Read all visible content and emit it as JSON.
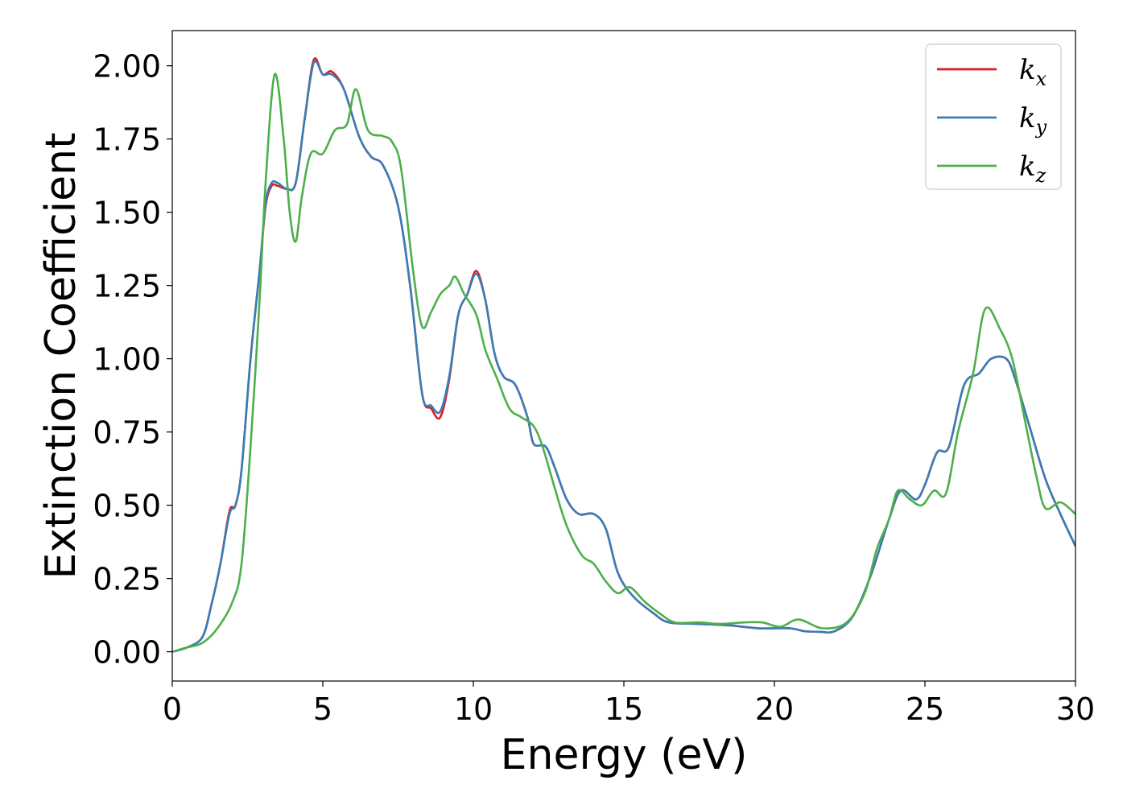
{
  "chart_data": {
    "type": "line",
    "title": "",
    "xlabel": "Energy (eV)",
    "ylabel": "Extinction Coefficient",
    "xlim": [
      0,
      30
    ],
    "ylim": [
      -0.1,
      2.12
    ],
    "xticks": [
      0,
      5,
      10,
      15,
      20,
      25,
      30
    ],
    "xtick_labels": [
      "0",
      "5",
      "10",
      "15",
      "20",
      "25",
      "30"
    ],
    "yticks": [
      0.0,
      0.25,
      0.5,
      0.75,
      1.0,
      1.25,
      1.5,
      1.75,
      2.0
    ],
    "ytick_labels": [
      "0.00",
      "0.25",
      "0.50",
      "0.75",
      "1.00",
      "1.25",
      "1.50",
      "1.75",
      "2.00"
    ],
    "grid": false,
    "legend_position": "top-right",
    "series": [
      {
        "name": "k_x",
        "label_base": "k",
        "label_sub": "x",
        "color": "#e41a1c",
        "points": [
          [
            0,
            0.0
          ],
          [
            0.5,
            0.015
          ],
          [
            1.0,
            0.05
          ],
          [
            1.3,
            0.16
          ],
          [
            1.6,
            0.3
          ],
          [
            1.9,
            0.48
          ],
          [
            2.1,
            0.5
          ],
          [
            2.3,
            0.62
          ],
          [
            2.6,
            1.0
          ],
          [
            2.9,
            1.3
          ],
          [
            3.1,
            1.52
          ],
          [
            3.3,
            1.59
          ],
          [
            3.5,
            1.59
          ],
          [
            3.8,
            1.58
          ],
          [
            4.1,
            1.6
          ],
          [
            4.4,
            1.82
          ],
          [
            4.7,
            2.02
          ],
          [
            5.0,
            1.97
          ],
          [
            5.3,
            1.98
          ],
          [
            5.7,
            1.92
          ],
          [
            6.2,
            1.76
          ],
          [
            6.6,
            1.69
          ],
          [
            7.0,
            1.66
          ],
          [
            7.5,
            1.52
          ],
          [
            7.9,
            1.25
          ],
          [
            8.3,
            0.88
          ],
          [
            8.6,
            0.83
          ],
          [
            8.9,
            0.8
          ],
          [
            9.2,
            0.93
          ],
          [
            9.5,
            1.15
          ],
          [
            9.8,
            1.22
          ],
          [
            10.1,
            1.3
          ],
          [
            10.4,
            1.2
          ],
          [
            10.7,
            1.02
          ],
          [
            11.0,
            0.94
          ],
          [
            11.4,
            0.91
          ],
          [
            11.8,
            0.8
          ],
          [
            12.0,
            0.71
          ],
          [
            12.4,
            0.7
          ],
          [
            12.7,
            0.63
          ],
          [
            13.1,
            0.52
          ],
          [
            13.5,
            0.47
          ],
          [
            14.0,
            0.47
          ],
          [
            14.4,
            0.42
          ],
          [
            14.8,
            0.27
          ],
          [
            15.3,
            0.19
          ],
          [
            16.0,
            0.13
          ],
          [
            16.5,
            0.1
          ],
          [
            17.5,
            0.095
          ],
          [
            18.5,
            0.09
          ],
          [
            19.5,
            0.08
          ],
          [
            20.5,
            0.08
          ],
          [
            21.0,
            0.07
          ],
          [
            21.5,
            0.068
          ],
          [
            22.0,
            0.07
          ],
          [
            22.6,
            0.12
          ],
          [
            23.2,
            0.26
          ],
          [
            23.8,
            0.45
          ],
          [
            24.2,
            0.55
          ],
          [
            24.7,
            0.52
          ],
          [
            25.0,
            0.57
          ],
          [
            25.4,
            0.68
          ],
          [
            25.8,
            0.7
          ],
          [
            26.3,
            0.91
          ],
          [
            26.8,
            0.95
          ],
          [
            27.2,
            1.0
          ],
          [
            27.7,
            1.0
          ],
          [
            28.0,
            0.93
          ],
          [
            28.5,
            0.76
          ],
          [
            29.0,
            0.59
          ],
          [
            29.5,
            0.47
          ],
          [
            30.0,
            0.36
          ]
        ]
      },
      {
        "name": "k_y",
        "label_base": "k",
        "label_sub": "y",
        "color": "#377eb8",
        "points": [
          [
            0,
            0.0
          ],
          [
            0.5,
            0.015
          ],
          [
            1.0,
            0.05
          ],
          [
            1.3,
            0.16
          ],
          [
            1.6,
            0.3
          ],
          [
            1.9,
            0.47
          ],
          [
            2.1,
            0.5
          ],
          [
            2.3,
            0.62
          ],
          [
            2.6,
            1.0
          ],
          [
            2.9,
            1.3
          ],
          [
            3.1,
            1.53
          ],
          [
            3.3,
            1.6
          ],
          [
            3.5,
            1.6
          ],
          [
            3.8,
            1.58
          ],
          [
            4.1,
            1.6
          ],
          [
            4.4,
            1.82
          ],
          [
            4.7,
            2.01
          ],
          [
            5.0,
            1.97
          ],
          [
            5.3,
            1.97
          ],
          [
            5.7,
            1.92
          ],
          [
            6.2,
            1.76
          ],
          [
            6.6,
            1.69
          ],
          [
            7.0,
            1.66
          ],
          [
            7.5,
            1.52
          ],
          [
            7.9,
            1.25
          ],
          [
            8.3,
            0.88
          ],
          [
            8.6,
            0.84
          ],
          [
            8.9,
            0.82
          ],
          [
            9.2,
            0.94
          ],
          [
            9.5,
            1.15
          ],
          [
            9.8,
            1.22
          ],
          [
            10.1,
            1.29
          ],
          [
            10.4,
            1.2
          ],
          [
            10.7,
            1.02
          ],
          [
            11.0,
            0.94
          ],
          [
            11.4,
            0.91
          ],
          [
            11.8,
            0.8
          ],
          [
            12.0,
            0.71
          ],
          [
            12.4,
            0.7
          ],
          [
            12.7,
            0.63
          ],
          [
            13.1,
            0.52
          ],
          [
            13.5,
            0.47
          ],
          [
            14.0,
            0.47
          ],
          [
            14.4,
            0.42
          ],
          [
            14.8,
            0.27
          ],
          [
            15.3,
            0.19
          ],
          [
            16.0,
            0.13
          ],
          [
            16.5,
            0.1
          ],
          [
            17.5,
            0.095
          ],
          [
            18.5,
            0.09
          ],
          [
            19.5,
            0.08
          ],
          [
            20.5,
            0.08
          ],
          [
            21.0,
            0.07
          ],
          [
            21.5,
            0.068
          ],
          [
            22.0,
            0.07
          ],
          [
            22.6,
            0.12
          ],
          [
            23.2,
            0.26
          ],
          [
            23.8,
            0.45
          ],
          [
            24.2,
            0.55
          ],
          [
            24.7,
            0.52
          ],
          [
            25.0,
            0.57
          ],
          [
            25.4,
            0.68
          ],
          [
            25.8,
            0.7
          ],
          [
            26.3,
            0.91
          ],
          [
            26.8,
            0.95
          ],
          [
            27.2,
            1.0
          ],
          [
            27.7,
            1.0
          ],
          [
            28.0,
            0.93
          ],
          [
            28.5,
            0.76
          ],
          [
            29.0,
            0.59
          ],
          [
            29.5,
            0.47
          ],
          [
            30.0,
            0.36
          ]
        ]
      },
      {
        "name": "k_z",
        "label_base": "k",
        "label_sub": "z",
        "color": "#4daf4a",
        "points": [
          [
            0,
            0.0
          ],
          [
            0.5,
            0.015
          ],
          [
            1.0,
            0.03
          ],
          [
            1.5,
            0.08
          ],
          [
            2.0,
            0.17
          ],
          [
            2.3,
            0.3
          ],
          [
            2.6,
            0.7
          ],
          [
            2.9,
            1.2
          ],
          [
            3.1,
            1.6
          ],
          [
            3.4,
            1.97
          ],
          [
            3.7,
            1.75
          ],
          [
            3.9,
            1.5
          ],
          [
            4.1,
            1.4
          ],
          [
            4.3,
            1.55
          ],
          [
            4.6,
            1.7
          ],
          [
            5.0,
            1.7
          ],
          [
            5.4,
            1.78
          ],
          [
            5.8,
            1.8
          ],
          [
            6.1,
            1.92
          ],
          [
            6.5,
            1.78
          ],
          [
            7.0,
            1.76
          ],
          [
            7.3,
            1.74
          ],
          [
            7.6,
            1.65
          ],
          [
            8.0,
            1.3
          ],
          [
            8.3,
            1.11
          ],
          [
            8.6,
            1.16
          ],
          [
            8.9,
            1.22
          ],
          [
            9.2,
            1.25
          ],
          [
            9.4,
            1.28
          ],
          [
            9.7,
            1.22
          ],
          [
            10.1,
            1.15
          ],
          [
            10.4,
            1.03
          ],
          [
            10.8,
            0.93
          ],
          [
            11.2,
            0.83
          ],
          [
            11.6,
            0.8
          ],
          [
            12.0,
            0.77
          ],
          [
            12.3,
            0.7
          ],
          [
            12.7,
            0.56
          ],
          [
            13.1,
            0.43
          ],
          [
            13.6,
            0.33
          ],
          [
            14.0,
            0.3
          ],
          [
            14.4,
            0.24
          ],
          [
            14.8,
            0.2
          ],
          [
            15.2,
            0.22
          ],
          [
            15.7,
            0.17
          ],
          [
            16.2,
            0.13
          ],
          [
            16.7,
            0.1
          ],
          [
            17.5,
            0.1
          ],
          [
            18.2,
            0.095
          ],
          [
            19.0,
            0.1
          ],
          [
            19.6,
            0.1
          ],
          [
            20.2,
            0.085
          ],
          [
            20.8,
            0.11
          ],
          [
            21.6,
            0.08
          ],
          [
            22.4,
            0.1
          ],
          [
            23.0,
            0.2
          ],
          [
            23.4,
            0.35
          ],
          [
            23.8,
            0.45
          ],
          [
            24.1,
            0.55
          ],
          [
            24.5,
            0.52
          ],
          [
            24.9,
            0.5
          ],
          [
            25.3,
            0.55
          ],
          [
            25.7,
            0.54
          ],
          [
            26.1,
            0.75
          ],
          [
            26.6,
            0.95
          ],
          [
            27.0,
            1.17
          ],
          [
            27.5,
            1.1
          ],
          [
            27.9,
            1.0
          ],
          [
            28.3,
            0.8
          ],
          [
            28.7,
            0.6
          ],
          [
            29.0,
            0.49
          ],
          [
            29.5,
            0.51
          ],
          [
            30.0,
            0.47
          ]
        ]
      }
    ]
  }
}
